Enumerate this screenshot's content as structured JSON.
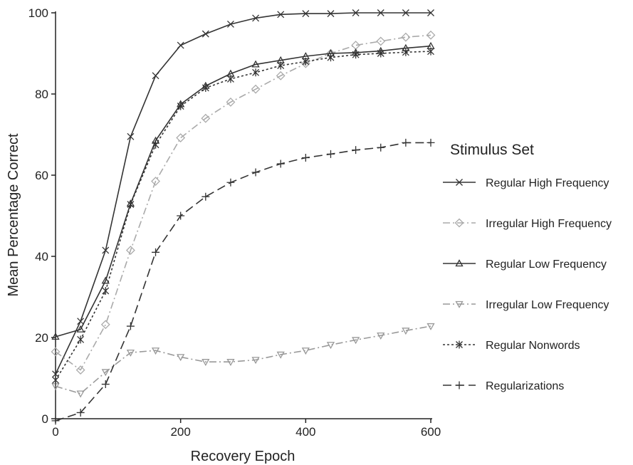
{
  "chart_data": {
    "type": "line",
    "xlabel": "Recovery Epoch",
    "ylabel": "Mean Percentage Correct",
    "xlim": [
      0,
      600
    ],
    "ylim": [
      0,
      100
    ],
    "xticks": [
      0,
      200,
      400,
      600
    ],
    "yticks": [
      0,
      20,
      40,
      60,
      80,
      100
    ],
    "grid": false,
    "legend_title": "Stimulus Set",
    "legend_position": "right",
    "x": [
      0,
      40,
      80,
      120,
      160,
      200,
      240,
      280,
      320,
      360,
      400,
      440,
      480,
      520,
      560,
      600
    ],
    "series": [
      {
        "name": "Regular High Frequency",
        "color": "#333333",
        "marker": "x",
        "dash": "solid",
        "values": [
          11,
          24,
          41.5,
          69.5,
          84.5,
          92,
          94.8,
          97.2,
          98.7,
          99.6,
          99.8,
          99.8,
          100,
          100,
          100,
          100
        ]
      },
      {
        "name": "Irregular High Frequency",
        "color": "#aaaaaa",
        "marker": "diamond",
        "dash": "dash-dot",
        "values": [
          16.5,
          12,
          23.2,
          41.5,
          58.5,
          69.2,
          74,
          78,
          81.2,
          84.5,
          87.5,
          90,
          92,
          93,
          94,
          94.5
        ]
      },
      {
        "name": "Regular Low Frequency",
        "color": "#333333",
        "marker": "triangle-up",
        "dash": "solid",
        "values": [
          20.2,
          22,
          34,
          53,
          68.5,
          77.5,
          82,
          85,
          87.3,
          88.3,
          89.3,
          90,
          90.2,
          90.6,
          91.3,
          91.8
        ]
      },
      {
        "name": "Irregular Low Frequency",
        "color": "#999999",
        "marker": "triangle-down",
        "dash": "dash-dot",
        "values": [
          8,
          6.2,
          11.5,
          16.3,
          16.8,
          15.2,
          14,
          14,
          14.5,
          15.8,
          16.8,
          18.2,
          19.4,
          20.5,
          21.7,
          22.8
        ]
      },
      {
        "name": "Regular Nonwords",
        "color": "#333333",
        "marker": "asterisk",
        "dash": "dotted",
        "values": [
          9.5,
          19.5,
          31.5,
          52.8,
          67.5,
          77,
          81.5,
          83.7,
          85.3,
          87,
          88,
          89,
          89.7,
          90,
          90.3,
          90.5
        ]
      },
      {
        "name": "Regularizations",
        "color": "#333333",
        "marker": "plus",
        "dash": "long-dash",
        "values": [
          -0.5,
          1.5,
          8.5,
          22.8,
          41,
          50,
          54.7,
          58.2,
          60.7,
          62.8,
          64.3,
          65.2,
          66.2,
          66.8,
          68,
          68
        ]
      }
    ]
  }
}
